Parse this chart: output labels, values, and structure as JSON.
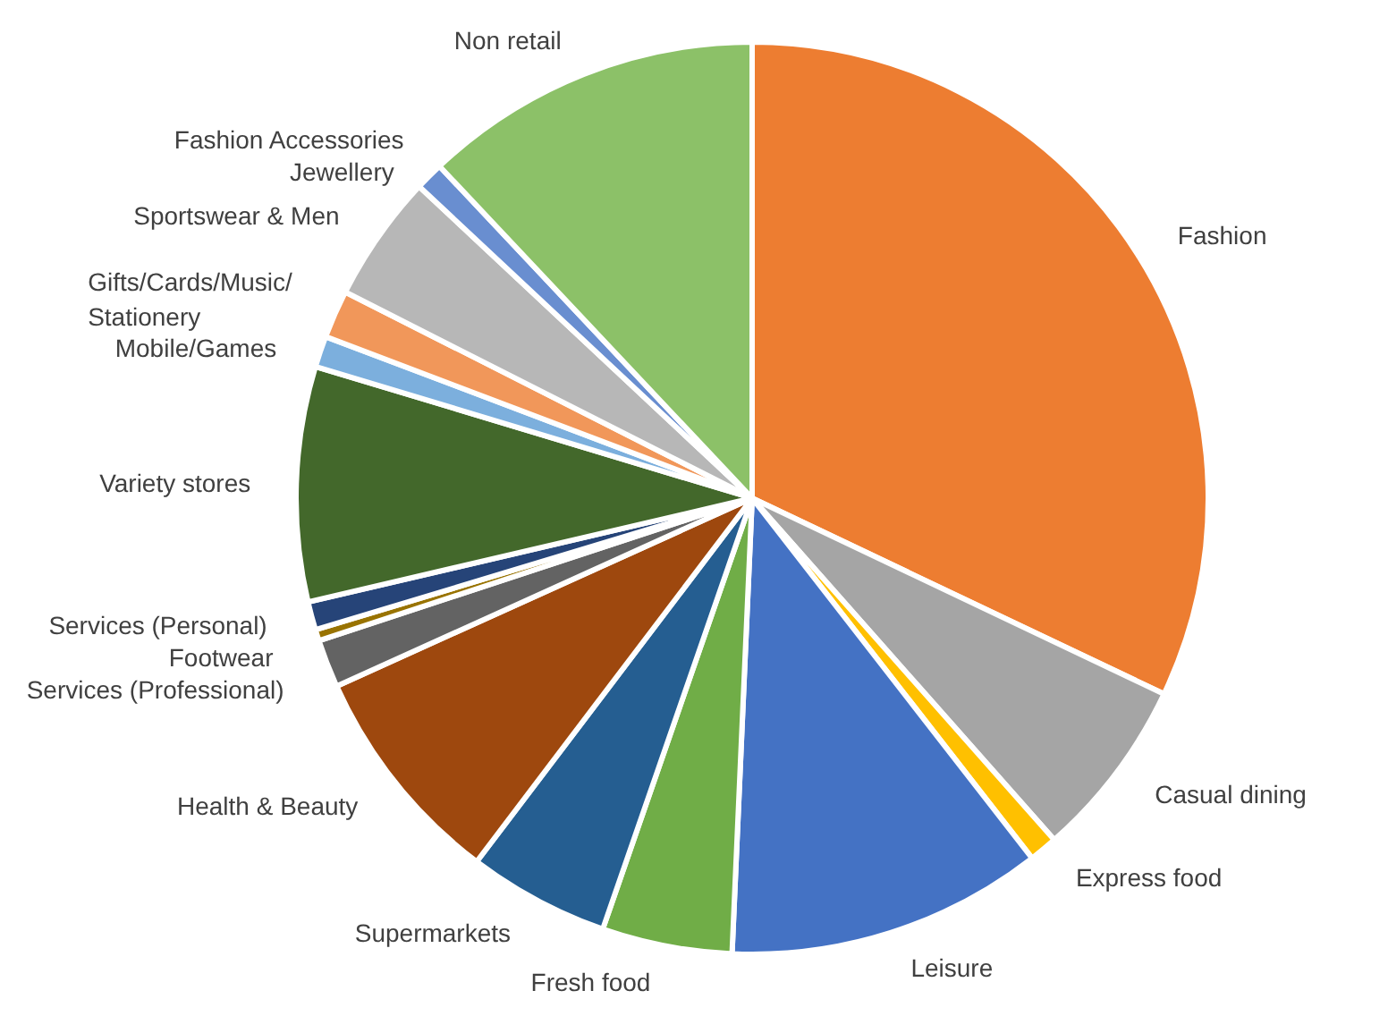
{
  "chart_data": {
    "type": "pie",
    "categories": [
      "Fashion",
      "Casual dining",
      "Express food",
      "Leisure",
      "Fresh food",
      "Supermarkets",
      "Health & Beauty",
      "Services (Professional)",
      "Footwear",
      "Services (Personal)",
      "Variety stores",
      "Mobile/Games",
      "Gifts/Cards/Music/\nStationery",
      "Sportswear & Men",
      "Jewellery",
      "Fashion Accessories",
      "Non retail"
    ],
    "values": [
      32,
      6.4,
      1,
      11.2,
      4.6,
      5,
      7.9,
      1.7,
      0.4,
      1,
      8.3,
      1.1,
      1.7,
      4.5,
      1,
      null,
      12
    ],
    "colors": [
      "#ed7d31",
      "#a5a5a5",
      "#ffc000",
      "#4472c4",
      "#70ad47",
      "#255e91",
      "#9e480e",
      "#636363",
      "#997300",
      "#264478",
      "#43682b",
      "#7cafdd",
      "#f1975a",
      "#b7b7b7",
      "#698ed0",
      "#ffcd33",
      "#8cc168"
    ]
  }
}
